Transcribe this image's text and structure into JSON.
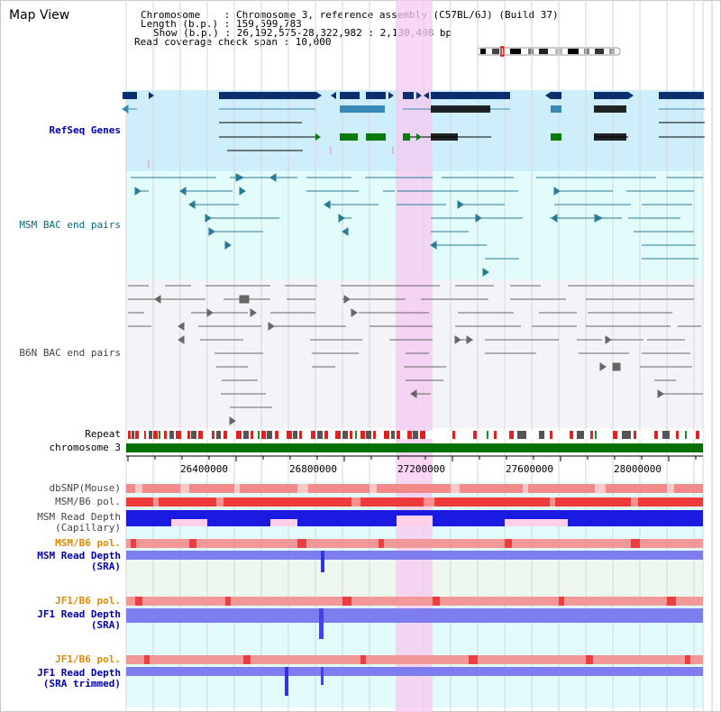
{
  "page_title": "Map View",
  "header": {
    "chromosome": "Chromosome    : Chromosome 3, reference assembly (C57BL/6J) (Build 37)",
    "length": "Length (b.p.) : 159,599,783",
    "show": "Show (b.p.) : 26,192,575-28,322,982 : 2,130,408 bp",
    "coverage": "Read coverage check span : 10,000"
  },
  "tracks": {
    "refseq": "RefSeq Genes",
    "msm_bac": "MSM BAC end pairs",
    "b6n_bac": "B6N BAC end pairs",
    "repeat": "Repeat",
    "chromosome": "chromosome 3",
    "dbsnp": "dbSNP(Mouse)",
    "msm_b6_pol": "MSM/B6 pol.",
    "msm_depth_cap_1": "MSM Read Depth",
    "msm_depth_cap_2": "(Capillary)",
    "msm_b6_pol_2": "MSM/B6 pol.",
    "msm_depth_sra_1": "MSM Read Depth",
    "msm_depth_sra_2": "(SRA)",
    "jf1_b6_pol": "JF1/B6 pol.",
    "jf1_depth_sra_1": "JF1 Read Depth",
    "jf1_depth_sra_2": "(SRA)",
    "jf1_b6_pol_2": "JF1/B6 pol.",
    "jf1_depth_trim_1": "JF1 Read Depth",
    "jf1_depth_trim_2": "(SRA trimmed)"
  },
  "axis": {
    "ticks": [
      "26400000",
      "26800000",
      "27200000",
      "27600000",
      "28000000"
    ]
  },
  "colors": {
    "refseq_bg": "#cdeefa",
    "msm_bg": "#e2fbfb",
    "b6n_bg": "#f4f4f8",
    "highlight": "#f6c8f0",
    "gene_navy": "#0a2e6e",
    "gene_green": "#0a7a0a",
    "chrom_green": "#007000",
    "read_blue": "#1a1ae0",
    "read_periwinkle": "#7d7df0"
  }
}
